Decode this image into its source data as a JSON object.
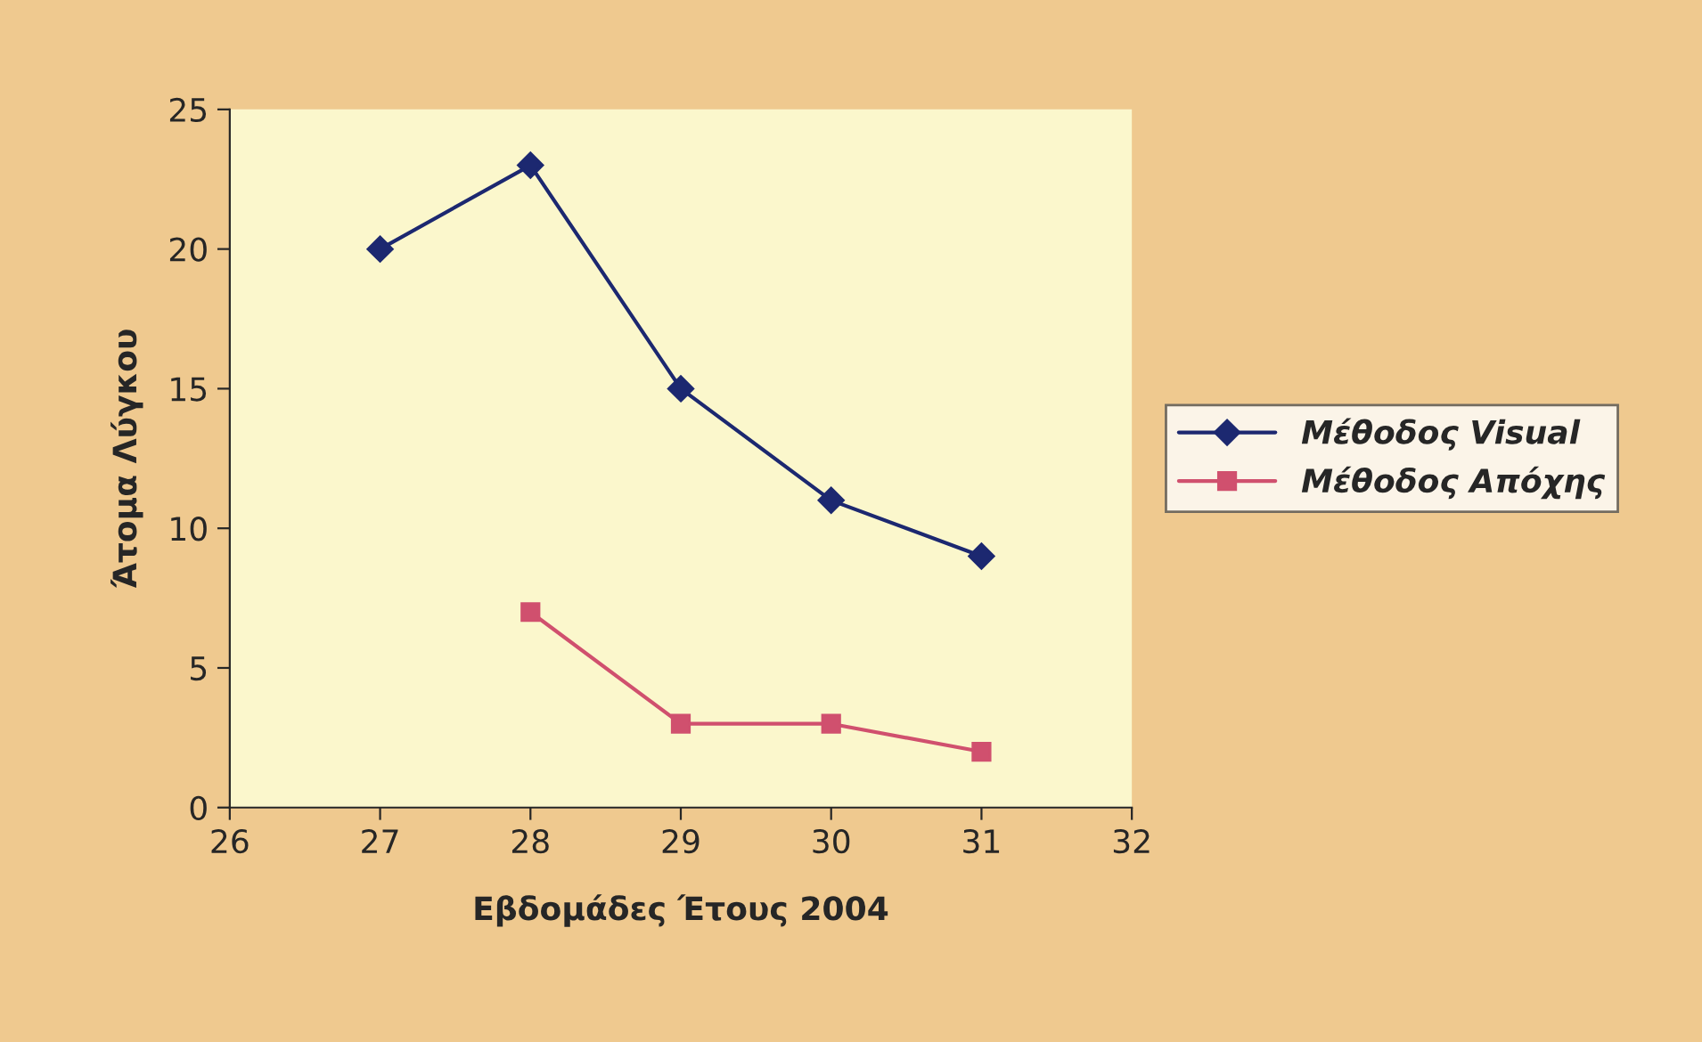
{
  "chart_data": {
    "type": "line",
    "xlabel": "Εβδομάδες Έτους 2004",
    "ylabel": "Άτομα Λύγκου",
    "x": [
      27,
      28,
      29,
      30,
      31
    ],
    "series": [
      {
        "name": "Μέθοδος Visual",
        "color": "#1c2870",
        "marker": "diamond",
        "values": [
          20,
          23,
          15,
          11,
          9
        ]
      },
      {
        "name": "Μέθοδος Απόχης",
        "color": "#d0506e",
        "marker": "square",
        "values": [
          null,
          7,
          3,
          3,
          2
        ]
      }
    ],
    "xlim": [
      26,
      32
    ],
    "xticks": [
      26,
      27,
      28,
      29,
      30,
      31,
      32
    ],
    "ylim": [
      0,
      25
    ],
    "yticks": [
      0,
      5,
      10,
      15,
      20,
      25
    ],
    "grid": false,
    "legend": "right",
    "line_style": "solid"
  }
}
